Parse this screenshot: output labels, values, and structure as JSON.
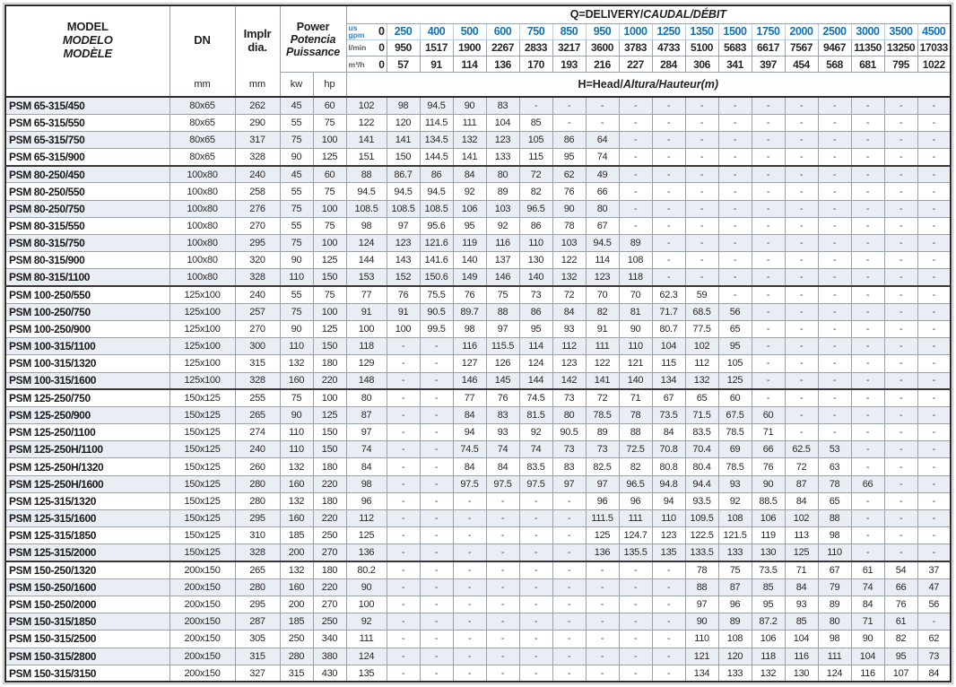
{
  "header": {
    "model_lines": [
      {
        "text": "MODEL",
        "italic": false
      },
      {
        "text": "MODELO",
        "italic": true
      },
      {
        "text": "MODÈLE",
        "italic": true
      }
    ],
    "dn_label": "DN",
    "dn_unit": "mm",
    "impeller_lines": [
      {
        "text": "Implr",
        "italic": false
      },
      {
        "text": "dia.",
        "italic": false
      }
    ],
    "impeller_unit": "mm",
    "power_lines": [
      {
        "text": "Power",
        "italic": false
      },
      {
        "text": "Potencia",
        "italic": true
      },
      {
        "text": "Puissance",
        "italic": true
      }
    ],
    "power_unit_kw": "kw",
    "power_unit_hp": "hp",
    "q_title": {
      "plain": "Q=DELIVERY/",
      "italic": "CAUDAL/DÉBIT"
    },
    "head_title": {
      "plain": "H=Head/",
      "italic": "Altura/Hauteur",
      "tail": "(m)"
    },
    "flow_rows": [
      {
        "unit_lines": [
          "us",
          "gpm"
        ],
        "style": "gpm",
        "values": [
          "0",
          "250",
          "400",
          "500",
          "600",
          "750",
          "850",
          "950",
          "1000",
          "1250",
          "1350",
          "1500",
          "1750",
          "2000",
          "2500",
          "3000",
          "3500",
          "4500"
        ]
      },
      {
        "unit_lines": [
          "l/min"
        ],
        "style": "lmin",
        "values": [
          "0",
          "950",
          "1517",
          "1900",
          "2267",
          "2833",
          "3217",
          "3600",
          "3783",
          "4733",
          "5100",
          "5683",
          "6617",
          "7567",
          "9467",
          "11350",
          "13250",
          "17033"
        ]
      },
      {
        "unit_lines": [
          "m³/h"
        ],
        "style": "m3h",
        "values": [
          "0",
          "57",
          "91",
          "114",
          "136",
          "170",
          "193",
          "216",
          "227",
          "284",
          "306",
          "341",
          "397",
          "454",
          "568",
          "681",
          "795",
          "1022"
        ]
      }
    ],
    "accent_blue": "#1273b8",
    "stripe_color": "#e9edf4"
  },
  "rows": [
    {
      "model": "PSM 65-315/450",
      "dn": "80x65",
      "dia": "262",
      "kw": "45",
      "hp": "60",
      "group": false,
      "heads": [
        "102",
        "98",
        "94.5",
        "90",
        "83",
        "-",
        "-",
        "-",
        "-",
        "-",
        "-",
        "-",
        "-",
        "-",
        "-",
        "-",
        "-",
        "-"
      ]
    },
    {
      "model": "PSM 65-315/550",
      "dn": "80x65",
      "dia": "290",
      "kw": "55",
      "hp": "75",
      "group": false,
      "heads": [
        "122",
        "120",
        "114.5",
        "111",
        "104",
        "85",
        "-",
        "-",
        "-",
        "-",
        "-",
        "-",
        "-",
        "-",
        "-",
        "-",
        "-",
        "-"
      ]
    },
    {
      "model": "PSM 65-315/750",
      "dn": "80x65",
      "dia": "317",
      "kw": "75",
      "hp": "100",
      "group": false,
      "heads": [
        "141",
        "141",
        "134.5",
        "132",
        "123",
        "105",
        "86",
        "64",
        "-",
        "-",
        "-",
        "-",
        "-",
        "-",
        "-",
        "-",
        "-",
        "-"
      ]
    },
    {
      "model": "PSM 65-315/900",
      "dn": "80x65",
      "dia": "328",
      "kw": "90",
      "hp": "125",
      "group": false,
      "heads": [
        "151",
        "150",
        "144.5",
        "141",
        "133",
        "115",
        "95",
        "74",
        "-",
        "-",
        "-",
        "-",
        "-",
        "-",
        "-",
        "-",
        "-",
        "-"
      ]
    },
    {
      "model": "PSM 80-250/450",
      "dn": "100x80",
      "dia": "240",
      "kw": "45",
      "hp": "60",
      "group": true,
      "heads": [
        "88",
        "86.7",
        "86",
        "84",
        "80",
        "72",
        "62",
        "49",
        "-",
        "-",
        "-",
        "-",
        "-",
        "-",
        "-",
        "-",
        "-",
        "-"
      ]
    },
    {
      "model": "PSM 80-250/550",
      "dn": "100x80",
      "dia": "258",
      "kw": "55",
      "hp": "75",
      "group": false,
      "heads": [
        "94.5",
        "94.5",
        "94.5",
        "92",
        "89",
        "82",
        "76",
        "66",
        "-",
        "-",
        "-",
        "-",
        "-",
        "-",
        "-",
        "-",
        "-",
        "-"
      ]
    },
    {
      "model": "PSM 80-250/750",
      "dn": "100x80",
      "dia": "276",
      "kw": "75",
      "hp": "100",
      "group": false,
      "heads": [
        "108.5",
        "108.5",
        "108.5",
        "106",
        "103",
        "96.5",
        "90",
        "80",
        "-",
        "-",
        "-",
        "-",
        "-",
        "-",
        "-",
        "-",
        "-",
        "-"
      ]
    },
    {
      "model": "PSM 80-315/550",
      "dn": "100x80",
      "dia": "270",
      "kw": "55",
      "hp": "75",
      "group": false,
      "heads": [
        "98",
        "97",
        "95.6",
        "95",
        "92",
        "86",
        "78",
        "67",
        "-",
        "-",
        "-",
        "-",
        "-",
        "-",
        "-",
        "-",
        "-",
        "-"
      ]
    },
    {
      "model": "PSM 80-315/750",
      "dn": "100x80",
      "dia": "295",
      "kw": "75",
      "hp": "100",
      "group": false,
      "heads": [
        "124",
        "123",
        "121.6",
        "119",
        "116",
        "110",
        "103",
        "94.5",
        "89",
        "-",
        "-",
        "-",
        "-",
        "-",
        "-",
        "-",
        "-",
        "-"
      ]
    },
    {
      "model": "PSM 80-315/900",
      "dn": "100x80",
      "dia": "320",
      "kw": "90",
      "hp": "125",
      "group": false,
      "heads": [
        "144",
        "143",
        "141.6",
        "140",
        "137",
        "130",
        "122",
        "114",
        "108",
        "-",
        "-",
        "-",
        "-",
        "-",
        "-",
        "-",
        "-",
        "-"
      ]
    },
    {
      "model": "PSM 80-315/1100",
      "dn": "100x80",
      "dia": "328",
      "kw": "110",
      "hp": "150",
      "group": false,
      "heads": [
        "153",
        "152",
        "150.6",
        "149",
        "146",
        "140",
        "132",
        "123",
        "118",
        "-",
        "-",
        "-",
        "-",
        "-",
        "-",
        "-",
        "-",
        "-"
      ]
    },
    {
      "model": "PSM 100-250/550",
      "dn": "125x100",
      "dia": "240",
      "kw": "55",
      "hp": "75",
      "group": true,
      "heads": [
        "77",
        "76",
        "75.5",
        "76",
        "75",
        "73",
        "72",
        "70",
        "70",
        "62.3",
        "59",
        "-",
        "-",
        "-",
        "-",
        "-",
        "-",
        "-"
      ]
    },
    {
      "model": "PSM 100-250/750",
      "dn": "125x100",
      "dia": "257",
      "kw": "75",
      "hp": "100",
      "group": false,
      "heads": [
        "91",
        "91",
        "90.5",
        "89.7",
        "88",
        "86",
        "84",
        "82",
        "81",
        "71.7",
        "68.5",
        "56",
        "-",
        "-",
        "-",
        "-",
        "-",
        "-"
      ]
    },
    {
      "model": "PSM 100-250/900",
      "dn": "125x100",
      "dia": "270",
      "kw": "90",
      "hp": "125",
      "group": false,
      "heads": [
        "100",
        "100",
        "99.5",
        "98",
        "97",
        "95",
        "93",
        "91",
        "90",
        "80.7",
        "77.5",
        "65",
        "-",
        "-",
        "-",
        "-",
        "-",
        "-"
      ]
    },
    {
      "model": "PSM 100-315/1100",
      "dn": "125x100",
      "dia": "300",
      "kw": "110",
      "hp": "150",
      "group": false,
      "heads": [
        "118",
        "-",
        "-",
        "116",
        "115.5",
        "114",
        "112",
        "111",
        "110",
        "104",
        "102",
        "95",
        "-",
        "-",
        "-",
        "-",
        "-",
        "-"
      ]
    },
    {
      "model": "PSM 100-315/1320",
      "dn": "125x100",
      "dia": "315",
      "kw": "132",
      "hp": "180",
      "group": false,
      "heads": [
        "129",
        "-",
        "-",
        "127",
        "126",
        "124",
        "123",
        "122",
        "121",
        "115",
        "112",
        "105",
        "-",
        "-",
        "-",
        "-",
        "-",
        "-"
      ]
    },
    {
      "model": "PSM 100-315/1600",
      "dn": "125x100",
      "dia": "328",
      "kw": "160",
      "hp": "220",
      "group": false,
      "heads": [
        "148",
        "-",
        "-",
        "146",
        "145",
        "144",
        "142",
        "141",
        "140",
        "134",
        "132",
        "125",
        "-",
        "-",
        "-",
        "-",
        "-",
        "-"
      ]
    },
    {
      "model": "PSM 125-250/750",
      "dn": "150x125",
      "dia": "255",
      "kw": "75",
      "hp": "100",
      "group": true,
      "heads": [
        "80",
        "-",
        "-",
        "77",
        "76",
        "74.5",
        "73",
        "72",
        "71",
        "67",
        "65",
        "60",
        "-",
        "-",
        "-",
        "-",
        "-",
        "-"
      ]
    },
    {
      "model": "PSM 125-250/900",
      "dn": "150x125",
      "dia": "265",
      "kw": "90",
      "hp": "125",
      "group": false,
      "heads": [
        "87",
        "-",
        "-",
        "84",
        "83",
        "81.5",
        "80",
        "78.5",
        "78",
        "73.5",
        "71.5",
        "67.5",
        "60",
        "-",
        "-",
        "-",
        "-",
        "-"
      ]
    },
    {
      "model": "PSM 125-250/1100",
      "dn": "150x125",
      "dia": "274",
      "kw": "110",
      "hp": "150",
      "group": false,
      "heads": [
        "97",
        "-",
        "-",
        "94",
        "93",
        "92",
        "90.5",
        "89",
        "88",
        "84",
        "83.5",
        "78.5",
        "71",
        "-",
        "-",
        "-",
        "-",
        "-"
      ]
    },
    {
      "model": "PSM 125-250H/1100",
      "dn": "150x125",
      "dia": "240",
      "kw": "110",
      "hp": "150",
      "group": false,
      "heads": [
        "74",
        "-",
        "-",
        "74.5",
        "74",
        "74",
        "73",
        "73",
        "72.5",
        "70.8",
        "70.4",
        "69",
        "66",
        "62.5",
        "53",
        "-",
        "-",
        "-"
      ]
    },
    {
      "model": "PSM 125-250H/1320",
      "dn": "150x125",
      "dia": "260",
      "kw": "132",
      "hp": "180",
      "group": false,
      "heads": [
        "84",
        "-",
        "-",
        "84",
        "84",
        "83.5",
        "83",
        "82.5",
        "82",
        "80.8",
        "80.4",
        "78.5",
        "76",
        "72",
        "63",
        "-",
        "-",
        "-"
      ]
    },
    {
      "model": "PSM 125-250H/1600",
      "dn": "150x125",
      "dia": "280",
      "kw": "160",
      "hp": "220",
      "group": false,
      "heads": [
        "98",
        "-",
        "-",
        "97.5",
        "97.5",
        "97.5",
        "97",
        "97",
        "96.5",
        "94.8",
        "94.4",
        "93",
        "90",
        "87",
        "78",
        "66",
        "-",
        "-"
      ]
    },
    {
      "model": "PSM 125-315/1320",
      "dn": "150x125",
      "dia": "280",
      "kw": "132",
      "hp": "180",
      "group": false,
      "heads": [
        "96",
        "-",
        "-",
        "-",
        "-",
        "-",
        "-",
        "96",
        "96",
        "94",
        "93.5",
        "92",
        "88.5",
        "84",
        "65",
        "-",
        "-",
        "-"
      ]
    },
    {
      "model": "PSM 125-315/1600",
      "dn": "150x125",
      "dia": "295",
      "kw": "160",
      "hp": "220",
      "group": false,
      "heads": [
        "112",
        "-",
        "-",
        "-",
        "-",
        "-",
        "-",
        "111.5",
        "111",
        "110",
        "109.5",
        "108",
        "106",
        "102",
        "88",
        "-",
        "-",
        "-"
      ]
    },
    {
      "model": "PSM 125-315/1850",
      "dn": "150x125",
      "dia": "310",
      "kw": "185",
      "hp": "250",
      "group": false,
      "heads": [
        "125",
        "-",
        "-",
        "-",
        "-",
        "-",
        "-",
        "125",
        "124.7",
        "123",
        "122.5",
        "121.5",
        "119",
        "113",
        "98",
        "-",
        "-",
        "-"
      ]
    },
    {
      "model": "PSM 125-315/2000",
      "dn": "150x125",
      "dia": "328",
      "kw": "200",
      "hp": "270",
      "group": false,
      "heads": [
        "136",
        "-",
        "-",
        "-",
        "-",
        "-",
        "-",
        "136",
        "135.5",
        "135",
        "133.5",
        "133",
        "130",
        "125",
        "110",
        "-",
        "-",
        "-"
      ]
    },
    {
      "model": "PSM 150-250/1320",
      "dn": "200x150",
      "dia": "265",
      "kw": "132",
      "hp": "180",
      "group": true,
      "heads": [
        "80.2",
        "-",
        "-",
        "-",
        "-",
        "-",
        "-",
        "-",
        "-",
        "-",
        "78",
        "75",
        "73.5",
        "71",
        "67",
        "61",
        "54",
        "37"
      ]
    },
    {
      "model": "PSM 150-250/1600",
      "dn": "200x150",
      "dia": "280",
      "kw": "160",
      "hp": "220",
      "group": false,
      "heads": [
        "90",
        "-",
        "-",
        "-",
        "-",
        "-",
        "-",
        "-",
        "-",
        "-",
        "88",
        "87",
        "85",
        "84",
        "79",
        "74",
        "66",
        "47"
      ]
    },
    {
      "model": "PSM 150-250/2000",
      "dn": "200x150",
      "dia": "295",
      "kw": "200",
      "hp": "270",
      "group": false,
      "heads": [
        "100",
        "-",
        "-",
        "-",
        "-",
        "-",
        "-",
        "-",
        "-",
        "-",
        "97",
        "96",
        "95",
        "93",
        "89",
        "84",
        "76",
        "56"
      ]
    },
    {
      "model": "PSM 150-315/1850",
      "dn": "200x150",
      "dia": "287",
      "kw": "185",
      "hp": "250",
      "group": false,
      "heads": [
        "92",
        "-",
        "-",
        "-",
        "-",
        "-",
        "-",
        "-",
        "-",
        "-",
        "90",
        "89",
        "87.2",
        "85",
        "80",
        "71",
        "61",
        "-"
      ]
    },
    {
      "model": "PSM 150-315/2500",
      "dn": "200x150",
      "dia": "305",
      "kw": "250",
      "hp": "340",
      "group": false,
      "heads": [
        "111",
        "-",
        "-",
        "-",
        "-",
        "-",
        "-",
        "-",
        "-",
        "-",
        "110",
        "108",
        "106",
        "104",
        "98",
        "90",
        "82",
        "62"
      ]
    },
    {
      "model": "PSM 150-315/2800",
      "dn": "200x150",
      "dia": "315",
      "kw": "280",
      "hp": "380",
      "group": false,
      "heads": [
        "124",
        "-",
        "-",
        "-",
        "-",
        "-",
        "-",
        "-",
        "-",
        "-",
        "121",
        "120",
        "118",
        "116",
        "111",
        "104",
        "95",
        "73"
      ]
    },
    {
      "model": "PSM 150-315/3150",
      "dn": "200x150",
      "dia": "327",
      "kw": "315",
      "hp": "430",
      "group": false,
      "heads": [
        "135",
        "-",
        "-",
        "-",
        "-",
        "-",
        "-",
        "-",
        "-",
        "-",
        "134",
        "133",
        "132",
        "130",
        "124",
        "116",
        "107",
        "84"
      ]
    }
  ]
}
